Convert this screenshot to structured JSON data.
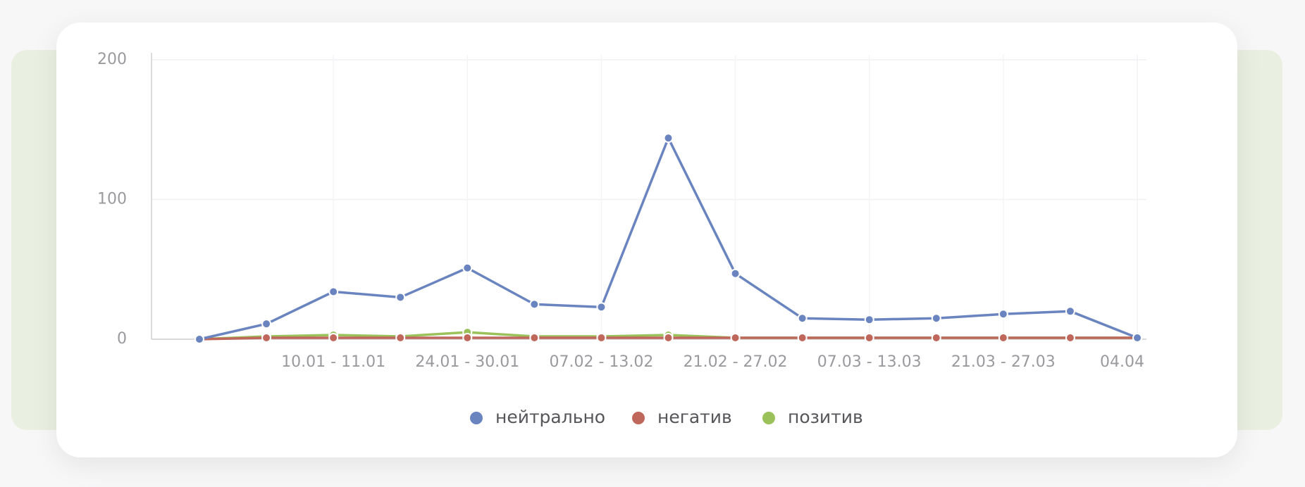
{
  "chart_data": {
    "type": "line",
    "categories": [
      null,
      null,
      "10.01 - 11.01",
      null,
      "24.01 - 30.01",
      null,
      "07.02 - 13.02",
      null,
      "21.02 - 27.02",
      null,
      "07.03 - 13.03",
      null,
      "21.03 - 27.03",
      null,
      "04.04"
    ],
    "series": [
      {
        "name": "нейтрально",
        "color": "#6a84bf",
        "values": [
          0,
          11,
          34,
          30,
          51,
          25,
          23,
          144,
          47,
          15,
          14,
          15,
          18,
          20,
          1
        ]
      },
      {
        "name": "негатив",
        "color": "#c0675c",
        "values": [
          0,
          1,
          1,
          1,
          1,
          1,
          1,
          1,
          1,
          1,
          1,
          1,
          1,
          1,
          1
        ]
      },
      {
        "name": "позитив",
        "color": "#9bc25a",
        "values": [
          0,
          2,
          3,
          2,
          5,
          2,
          2,
          3,
          1,
          1,
          1,
          1,
          1,
          1,
          1
        ]
      }
    ],
    "ylim": [
      0,
      200
    ],
    "yticks": [
      0,
      100,
      200
    ],
    "grid": true
  }
}
